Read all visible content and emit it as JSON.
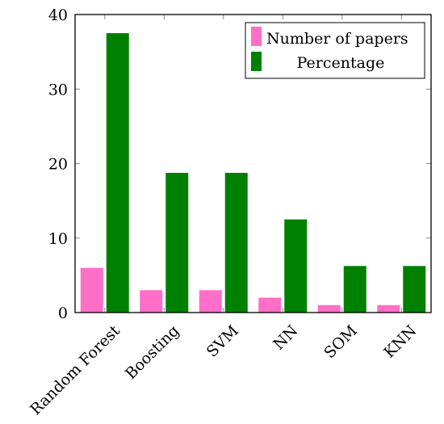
{
  "chart_data": {
    "type": "bar",
    "categories": [
      "Random Forest",
      "Boosting",
      "SVM",
      "NN",
      "SOM",
      "KNN"
    ],
    "series": [
      {
        "name": "Number of papers",
        "values": [
          6,
          3,
          3,
          2,
          1,
          1
        ],
        "color": "#ff6ec7"
      },
      {
        "name": "Percentage",
        "values": [
          37.5,
          18.75,
          18.75,
          12.5,
          6.25,
          6.25
        ],
        "color": "#008000"
      }
    ],
    "ylim": [
      0,
      40
    ],
    "yticks": [
      0,
      10,
      20,
      30,
      40
    ],
    "grid": false,
    "legend_position": "top-right"
  }
}
